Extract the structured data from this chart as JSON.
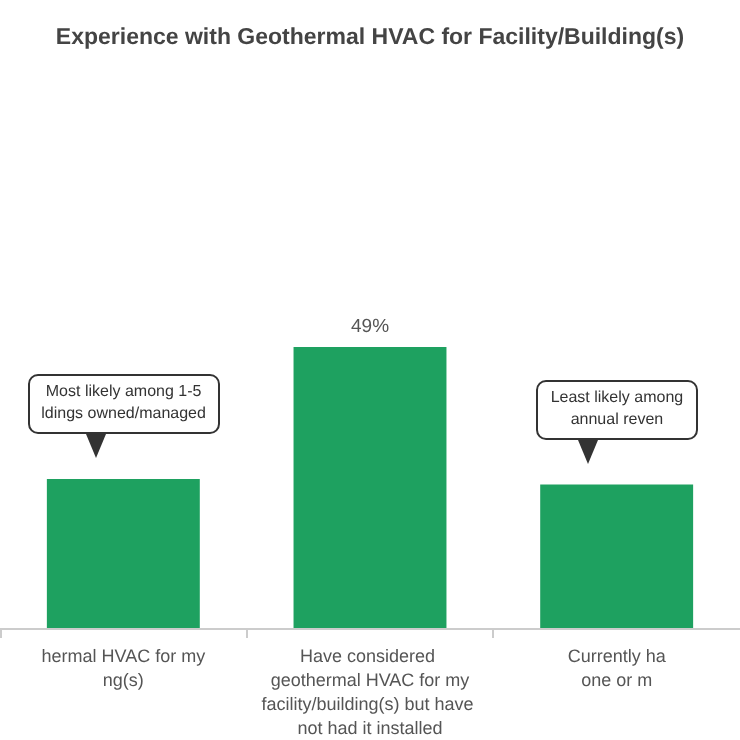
{
  "chart_data": {
    "type": "bar",
    "title": "Experience with Geothermal HVAC for Facility/Building(s)",
    "categories": [
      "hermal HVAC for my\nng(s)",
      "Have considered geothermal HVAC for my\nfacility/building(s) but have not had it installed",
      "Currently ha\none or m"
    ],
    "values": [
      26,
      49,
      25
    ],
    "color": "#1ea160",
    "value_labels": [
      null,
      "49%",
      null
    ],
    "annotations": [
      "Most likely among 1-5\nldings owned/managed",
      "Least likely among\nannual reven"
    ]
  }
}
